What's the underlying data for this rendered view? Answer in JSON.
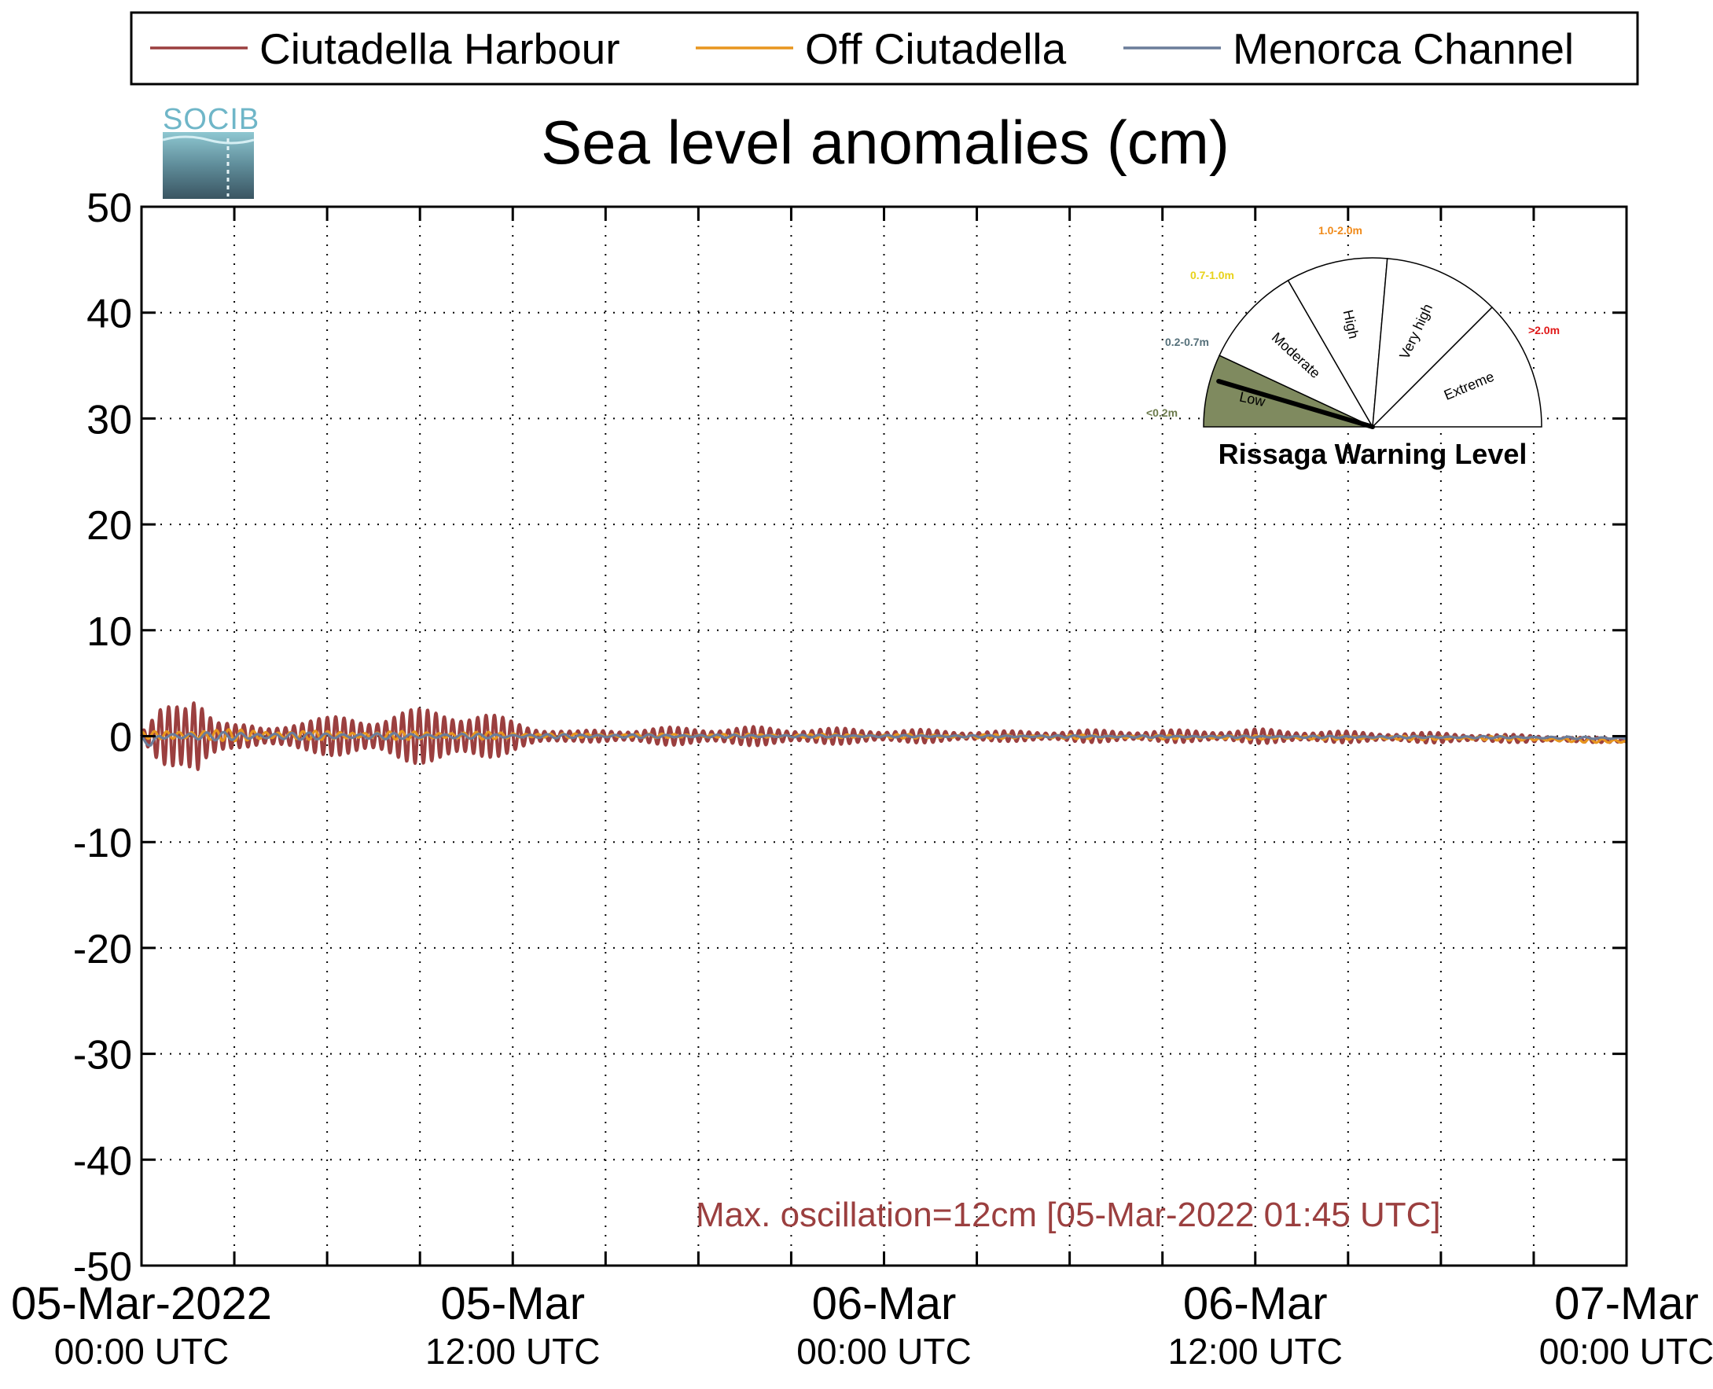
{
  "legend": {
    "entries": [
      {
        "label": "Ciutadella Harbour",
        "color": "#9b3f3f"
      },
      {
        "label": "Off Ciutadella",
        "color": "#e8961e"
      },
      {
        "label": "Menorca Channel",
        "color": "#6b7d9a"
      }
    ]
  },
  "logo": {
    "text": "SOCIB"
  },
  "annotation": {
    "max_oscillation": "Max. oscillation=12cm [05-Mar-2022 01:45 UTC]",
    "color": "#9b3f3f"
  },
  "gauge": {
    "title": "Rissaga Warning Level",
    "needle_level": "Low",
    "sectors": [
      {
        "name": "Low",
        "range": "<0.2m",
        "range_color": "#6b7a4b",
        "fill": "#7f8a5f"
      },
      {
        "name": "Moderate",
        "range": "0.2-0.7m",
        "range_color": "#55707a",
        "fill": "#ffffff"
      },
      {
        "name": "High",
        "range": "0.7-1.0m",
        "range_color": "#e8d21a",
        "fill": "#ffffff"
      },
      {
        "name": "Very high",
        "range": "1.0-2.0m",
        "range_color": "#f08a1a",
        "fill": "#ffffff"
      },
      {
        "name": "Extreme",
        "range": ">2.0m",
        "range_color": "#e01818",
        "fill": "#ffffff"
      }
    ]
  },
  "chart_data": {
    "type": "line",
    "title": "Sea level anomalies (cm)",
    "xlabel": "",
    "ylabel": "",
    "ylim": [
      -50,
      50
    ],
    "yticks": [
      "50",
      "40",
      "30",
      "20",
      "10",
      "0",
      "-10",
      "-20",
      "-30",
      "-40",
      "-50"
    ],
    "xlim_hours": [
      0,
      48
    ],
    "xtick_labels": [
      {
        "line1": "05-Mar-2022",
        "line2": "00:00 UTC"
      },
      {
        "line1": "05-Mar",
        "line2": "12:00 UTC"
      },
      {
        "line1": "06-Mar",
        "line2": "00:00 UTC"
      },
      {
        "line1": "06-Mar",
        "line2": "12:00 UTC"
      },
      {
        "line1": "07-Mar",
        "line2": "00:00 UTC"
      }
    ],
    "grid": true,
    "legend_position": "top",
    "series": [
      {
        "name": "Ciutadella Harbour",
        "color": "#9b3f3f",
        "period_hours": 0.27,
        "envelope": [
          [
            0,
            0.5
          ],
          [
            0.3,
            1.5
          ],
          [
            0.6,
            2.5
          ],
          [
            1.0,
            3.0
          ],
          [
            1.4,
            3.5
          ],
          [
            1.7,
            5.5
          ],
          [
            1.85,
            6.0
          ],
          [
            2.1,
            4.0
          ],
          [
            2.5,
            2.0
          ],
          [
            3.0,
            1.2
          ],
          [
            4.0,
            0.8
          ],
          [
            5.0,
            2.0
          ],
          [
            6.0,
            1.8
          ],
          [
            7.0,
            2.0
          ],
          [
            8.0,
            2.4
          ],
          [
            9.0,
            2.6
          ],
          [
            10.0,
            3.0
          ],
          [
            11.0,
            2.4
          ],
          [
            12.0,
            1.5
          ],
          [
            13.0,
            0.9
          ],
          [
            14.0,
            0.5
          ],
          [
            16.0,
            0.8
          ],
          [
            18.0,
            0.9
          ],
          [
            20.0,
            0.9
          ],
          [
            22.0,
            0.8
          ],
          [
            24.0,
            0.7
          ],
          [
            26.0,
            0.6
          ],
          [
            28.0,
            0.5
          ],
          [
            30.0,
            0.6
          ],
          [
            32.0,
            0.6
          ],
          [
            34.0,
            0.6
          ],
          [
            36.0,
            0.7
          ],
          [
            38.0,
            0.6
          ],
          [
            40.0,
            0.5
          ],
          [
            42.0,
            0.5
          ],
          [
            44.0,
            0.4
          ],
          [
            46.0,
            0.3
          ],
          [
            48.0,
            0.2
          ]
        ],
        "mean": [
          [
            0,
            0
          ],
          [
            12,
            0
          ],
          [
            24,
            0
          ],
          [
            36,
            0
          ],
          [
            44,
            -0.2
          ],
          [
            48,
            -0.4
          ]
        ]
      },
      {
        "name": "Off Ciutadella",
        "color": "#e8961e",
        "period_hours": 0.4,
        "envelope": [
          [
            0,
            0.3
          ],
          [
            2,
            0.6
          ],
          [
            6,
            0.4
          ],
          [
            10,
            0.4
          ],
          [
            14,
            0.2
          ],
          [
            24,
            0.2
          ],
          [
            36,
            0.2
          ],
          [
            48,
            0.2
          ]
        ],
        "mean": [
          [
            0,
            0.1
          ],
          [
            24,
            0
          ],
          [
            44,
            -0.2
          ],
          [
            48,
            -0.5
          ]
        ]
      },
      {
        "name": "Menorca Channel",
        "color": "#6b7d9a",
        "period_hours": 0.55,
        "envelope": [
          [
            0,
            0.3
          ],
          [
            2,
            0.4
          ],
          [
            12,
            0.2
          ],
          [
            24,
            0.1
          ],
          [
            48,
            0.1
          ]
        ],
        "mean": [
          [
            0,
            0
          ],
          [
            0.3,
            -0.8
          ],
          [
            0.6,
            0
          ],
          [
            24,
            0
          ],
          [
            44,
            -0.1
          ],
          [
            48,
            -0.2
          ]
        ]
      }
    ]
  }
}
